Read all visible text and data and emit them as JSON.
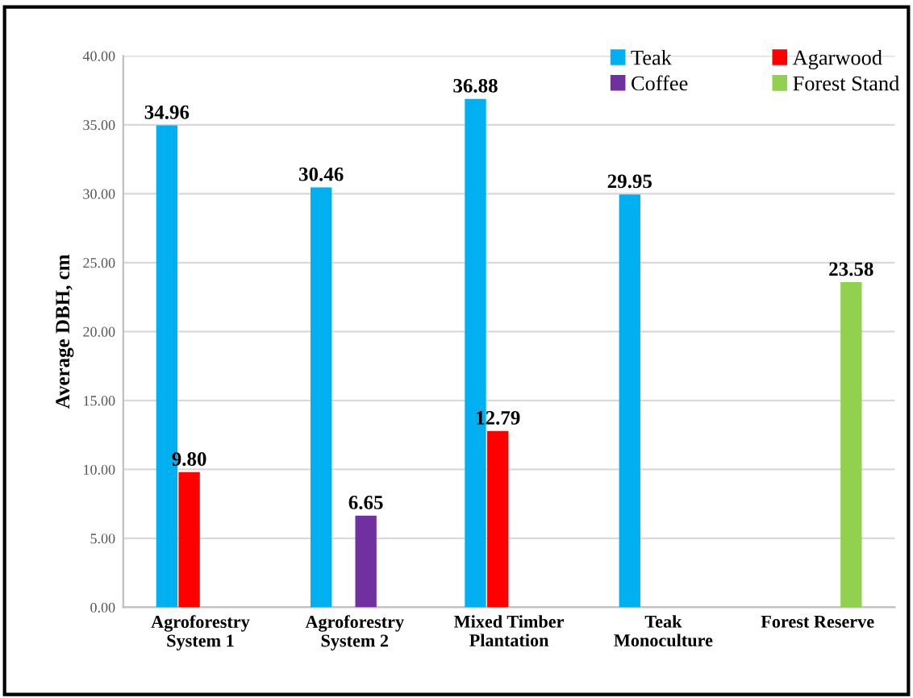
{
  "chart_data": {
    "type": "bar",
    "ylabel": "Average DBH, cm",
    "categories": [
      "Agroforestry\nSystem 1",
      "Agroforestry\nSystem 2",
      "Mixed Timber\nPlantation",
      "Teak\nMonoculture",
      "Forest Reserve"
    ],
    "series": [
      {
        "name": "Teak",
        "color": "#00b0f0",
        "values": [
          34.96,
          30.46,
          36.88,
          29.95,
          null
        ],
        "value_labels": [
          "34.96",
          "30.46",
          "36.88",
          "29.95",
          null
        ]
      },
      {
        "name": "Agarwood",
        "color": "#ff0000",
        "values": [
          9.8,
          null,
          12.79,
          null,
          null
        ],
        "value_labels": [
          "9.80",
          null,
          "12.79",
          null,
          null
        ]
      },
      {
        "name": "Coffee",
        "color": "#7030a0",
        "values": [
          null,
          6.65,
          null,
          null,
          null
        ],
        "value_labels": [
          null,
          "6.65",
          null,
          null,
          null
        ]
      },
      {
        "name": "Forest Stand",
        "color": "#92d050",
        "values": [
          null,
          null,
          null,
          null,
          23.58
        ],
        "value_labels": [
          null,
          null,
          null,
          null,
          "23.58"
        ]
      }
    ],
    "ylim": [
      0,
      40
    ],
    "yticks": [
      {
        "value": 0,
        "label": "0.00"
      },
      {
        "value": 5,
        "label": "5.00"
      },
      {
        "value": 10,
        "label": "10.00"
      },
      {
        "value": 15,
        "label": "15.00"
      },
      {
        "value": 20,
        "label": "20.00"
      },
      {
        "value": 25,
        "label": "25.00"
      },
      {
        "value": 30,
        "label": "30.00"
      },
      {
        "value": 35,
        "label": "35.00"
      },
      {
        "value": 40,
        "label": "40.00"
      }
    ],
    "grid": "y",
    "legend": "top right"
  }
}
